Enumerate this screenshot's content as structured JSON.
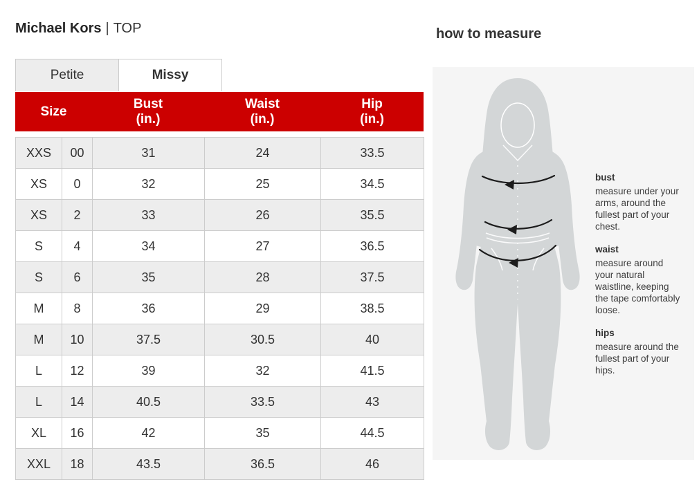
{
  "header": {
    "brand": "Michael Kors",
    "separator": "|",
    "category": "TOP"
  },
  "tabs": [
    {
      "label": "Petite",
      "active": false
    },
    {
      "label": "Missy",
      "active": true
    }
  ],
  "size_chart": {
    "columns": {
      "size": "Size",
      "bust": {
        "line1": "Bust",
        "line2": "(in.)"
      },
      "waist": {
        "line1": "Waist",
        "line2": "(in.)"
      },
      "hip": {
        "line1": "Hip",
        "line2": "(in.)"
      }
    },
    "rows": [
      {
        "size_alpha": "XXS",
        "size_num": "00",
        "bust": "31",
        "waist": "24",
        "hip": "33.5"
      },
      {
        "size_alpha": "XS",
        "size_num": "0",
        "bust": "32",
        "waist": "25",
        "hip": "34.5"
      },
      {
        "size_alpha": "XS",
        "size_num": "2",
        "bust": "33",
        "waist": "26",
        "hip": "35.5"
      },
      {
        "size_alpha": "S",
        "size_num": "4",
        "bust": "34",
        "waist": "27",
        "hip": "36.5"
      },
      {
        "size_alpha": "S",
        "size_num": "6",
        "bust": "35",
        "waist": "28",
        "hip": "37.5"
      },
      {
        "size_alpha": "M",
        "size_num": "8",
        "bust": "36",
        "waist": "29",
        "hip": "38.5"
      },
      {
        "size_alpha": "M",
        "size_num": "10",
        "bust": "37.5",
        "waist": "30.5",
        "hip": "40"
      },
      {
        "size_alpha": "L",
        "size_num": "12",
        "bust": "39",
        "waist": "32",
        "hip": "41.5"
      },
      {
        "size_alpha": "L",
        "size_num": "14",
        "bust": "40.5",
        "waist": "33.5",
        "hip": "43"
      },
      {
        "size_alpha": "XL",
        "size_num": "16",
        "bust": "42",
        "waist": "35",
        "hip": "44.5"
      },
      {
        "size_alpha": "XXL",
        "size_num": "18",
        "bust": "43.5",
        "waist": "36.5",
        "hip": "46"
      }
    ]
  },
  "how_to_measure": {
    "title": "how to measure",
    "figure": "female-body-silhouette",
    "sections": [
      {
        "label": "bust",
        "text": "measure under your arms, around the fullest part of your chest."
      },
      {
        "label": "waist",
        "text": "measure around your natural waistline, keeping the tape comfortably loose."
      },
      {
        "label": "hips",
        "text": "measure around the fullest part of your hips."
      }
    ]
  },
  "colors": {
    "header_red": "#cc0000",
    "row_alt_gray": "#ededed",
    "tab_inactive_gray": "#ededed",
    "border_gray": "#cccccc",
    "panel_gray": "#f5f5f5",
    "figure_gray": "#d3d6d7",
    "text_dark": "#333333"
  }
}
